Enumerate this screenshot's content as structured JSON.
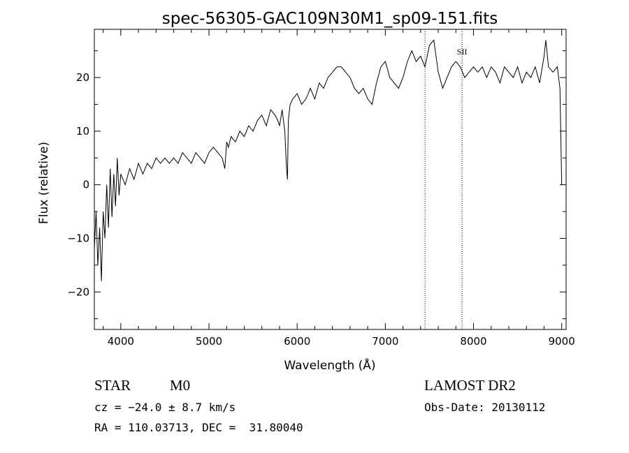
{
  "chart_data": {
    "type": "line",
    "title": "spec-56305-GAC109N30M1_sp09-151.fits",
    "xlabel": "Wavelength (Å)",
    "ylabel": "Flux (relative)",
    "xlim": [
      3700,
      9050
    ],
    "ylim": [
      -27,
      29
    ],
    "xticks": [
      4000,
      5000,
      6000,
      7000,
      8000,
      9000
    ],
    "xtick_labels": [
      "4000",
      "5000",
      "6000",
      "7000",
      "8000",
      "9000"
    ],
    "yticks": [
      -20,
      -10,
      0,
      10,
      20
    ],
    "ytick_labels": [
      "−20",
      "−10",
      "0",
      "10",
      "20"
    ],
    "grid": false,
    "series": [
      {
        "x": [
          3700,
          3720,
          3740,
          3760,
          3780,
          3800,
          3820,
          3840,
          3860,
          3880,
          3900,
          3920,
          3940,
          3960,
          3980,
          4000,
          4050,
          4100,
          4150,
          4200,
          4250,
          4300,
          4350,
          4400,
          4450,
          4500,
          4550,
          4600,
          4650,
          4700,
          4750,
          4800,
          4850,
          4900,
          4950,
          5000,
          5050,
          5100,
          5150,
          5180,
          5200,
          5220,
          5250,
          5300,
          5350,
          5400,
          5450,
          5500,
          5550,
          5600,
          5650,
          5700,
          5750,
          5780,
          5800,
          5830,
          5860,
          5880,
          5890,
          5900,
          5920,
          5950,
          6000,
          6050,
          6100,
          6150,
          6200,
          6250,
          6300,
          6350,
          6400,
          6450,
          6500,
          6550,
          6600,
          6650,
          6700,
          6750,
          6800,
          6850,
          6900,
          6950,
          7000,
          7050,
          7100,
          7150,
          7200,
          7250,
          7300,
          7350,
          7400,
          7450,
          7500,
          7550,
          7600,
          7650,
          7700,
          7750,
          7800,
          7850,
          7900,
          7950,
          8000,
          8050,
          8100,
          8150,
          8200,
          8250,
          8300,
          8350,
          8400,
          8450,
          8500,
          8550,
          8600,
          8650,
          8700,
          8750,
          8800,
          8820,
          8850,
          8900,
          8950,
          8980,
          9000
        ],
        "y": [
          -12,
          -5,
          -15,
          -8,
          -18,
          -5,
          -10,
          0,
          -8,
          3,
          -6,
          2,
          -4,
          5,
          -2,
          2,
          0,
          3,
          1,
          4,
          2,
          4,
          3,
          5,
          4,
          5,
          4,
          5,
          4,
          6,
          5,
          4,
          6,
          5,
          4,
          6,
          7,
          6,
          5,
          3,
          8,
          7,
          9,
          8,
          10,
          9,
          11,
          10,
          12,
          13,
          11,
          14,
          13,
          12,
          11,
          14,
          10,
          3,
          1,
          12,
          15,
          16,
          17,
          15,
          16,
          18,
          16,
          19,
          18,
          20,
          21,
          22,
          22,
          21,
          20,
          18,
          17,
          18,
          16,
          15,
          19,
          22,
          23,
          20,
          19,
          18,
          20,
          23,
          25,
          23,
          24,
          22,
          26,
          27,
          21,
          18,
          20,
          22,
          23,
          22,
          20,
          21,
          22,
          21,
          22,
          20,
          22,
          21,
          19,
          22,
          21,
          20,
          22,
          19,
          21,
          20,
          22,
          19,
          24,
          27,
          22,
          21,
          22,
          18,
          0
        ]
      }
    ],
    "reference_lines": [
      {
        "x": 7450,
        "label": ""
      },
      {
        "x": 7870,
        "label": "SII"
      }
    ]
  },
  "info": {
    "class": "STAR",
    "subclass": "M0",
    "survey": "LAMOST DR2",
    "cz": "cz = −24.0 ± 8.7 km/s",
    "obs_date": "Obs-Date: 20130112",
    "coords": "RA = 110.03713, DEC =  31.80040"
  }
}
